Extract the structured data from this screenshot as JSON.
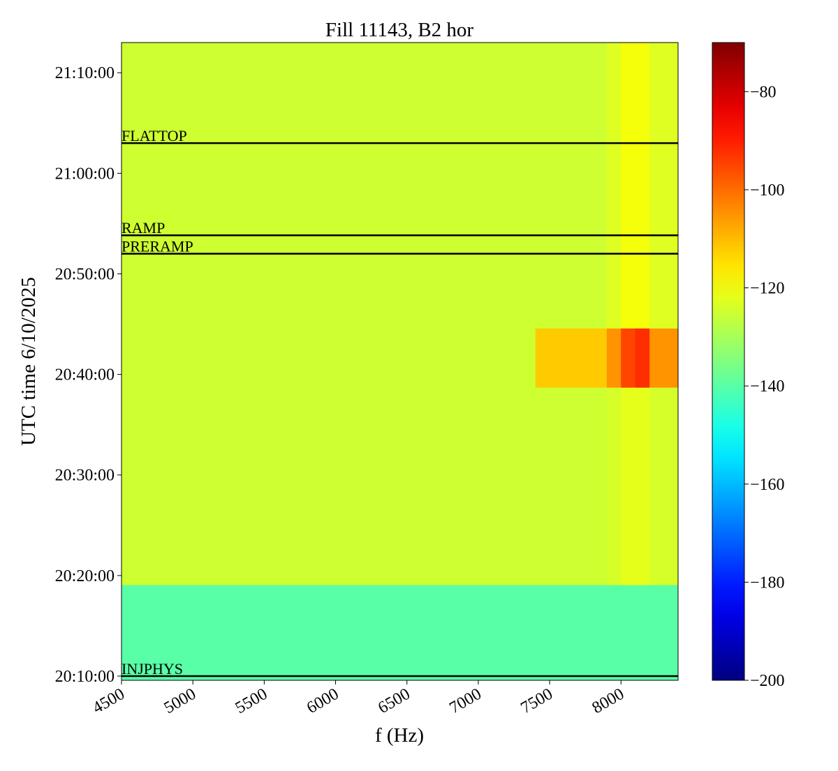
{
  "chart_data": {
    "type": "heatmap",
    "title": "Fill 11143, B2 hor",
    "xlabel": "f (Hz)",
    "ylabel": "UTC time 6/10/2025",
    "colormap": "jet",
    "x_edges": [
      4500,
      7400,
      7900,
      8000,
      8100,
      8200,
      8400
    ],
    "y_edges": [
      72575,
      73145,
      74323,
      74676,
      76380
    ],
    "z": [
      [
        -140,
        -140,
        -140,
        -140,
        -140,
        -140
      ],
      [
        -125,
        -125,
        -124,
        -122,
        -122,
        -124
      ],
      [
        -125,
        -112,
        -105,
        -95,
        -92,
        -105
      ],
      [
        -125,
        -125,
        -123,
        -120,
        -120,
        -123
      ]
    ],
    "xlim": [
      4500,
      8400
    ],
    "ylim": [
      72575,
      76380
    ],
    "xticks": [
      4500,
      5000,
      5500,
      6000,
      6500,
      7000,
      7500,
      8000
    ],
    "yticks": [
      {
        "value": 72600,
        "label": "20:10:00"
      },
      {
        "value": 73200,
        "label": "20:20:00"
      },
      {
        "value": 73800,
        "label": "20:30:00"
      },
      {
        "value": 74400,
        "label": "20:40:00"
      },
      {
        "value": 75000,
        "label": "20:50:00"
      },
      {
        "value": 75600,
        "label": "21:00:00"
      },
      {
        "value": 76200,
        "label": "21:10:00"
      }
    ],
    "clim": [
      -200,
      -70
    ],
    "cticks": [
      {
        "value": -200,
        "label": "−200"
      },
      {
        "value": -180,
        "label": "−180"
      },
      {
        "value": -160,
        "label": "−160"
      },
      {
        "value": -140,
        "label": "−140"
      },
      {
        "value": -120,
        "label": "−120"
      },
      {
        "value": -100,
        "label": "−100"
      },
      {
        "value": -80,
        "label": "−80"
      }
    ],
    "events": [
      {
        "label": "FLATTOP",
        "y": 75780
      },
      {
        "label": "RAMP",
        "y": 75230
      },
      {
        "label": "PRERAMP",
        "y": 75120
      },
      {
        "label": "INJPHYS",
        "y": 72600
      }
    ]
  }
}
